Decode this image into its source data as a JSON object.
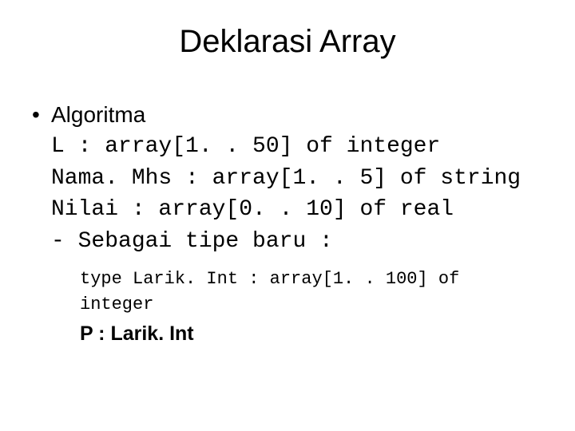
{
  "title": "Deklarasi Array",
  "bullet": {
    "mark": "•",
    "heading": "Algoritma",
    "lines": [
      "L : array[1. . 50] of integer",
      "Nama. Mhs : array[1. . 5] of string",
      "Nilai : array[0. . 10] of real",
      "- Sebagai tipe baru :"
    ]
  },
  "sub": {
    "typedef": "type Larik. Int : array[1. . 100] of integer",
    "decl": "P : Larik. Int"
  }
}
